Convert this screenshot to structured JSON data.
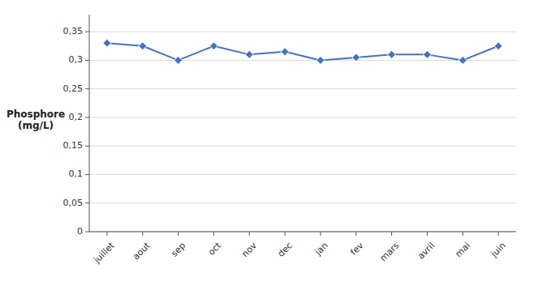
{
  "chart_data": {
    "type": "line",
    "y_label": "Phosphore\n(mg/L)",
    "categories": [
      "juillet",
      "aout",
      "sep",
      "oct",
      "nov",
      "dec",
      "jan",
      "fev",
      "mars",
      "avril",
      "mai",
      "juin"
    ],
    "values": [
      0.33,
      0.325,
      0.3,
      0.325,
      0.31,
      0.315,
      0.3,
      0.305,
      0.31,
      0.31,
      0.3,
      0.325
    ],
    "color": "#4472C4",
    "marker": "diamond",
    "ylim": [
      0,
      0.38
    ],
    "yticks": [
      0,
      {
        "value": 0.05,
        "label": "0,05"
      },
      {
        "value": 0.1,
        "label": "0,1"
      },
      {
        "value": 0.15,
        "label": "0,15"
      },
      {
        "value": 0.2,
        "label": "0,2"
      },
      {
        "value": 0.25,
        "label": "0,25"
      },
      {
        "value": 0.3,
        "label": "0,3"
      },
      {
        "value": 0.35,
        "label": "0,35"
      }
    ],
    "grid": true
  }
}
